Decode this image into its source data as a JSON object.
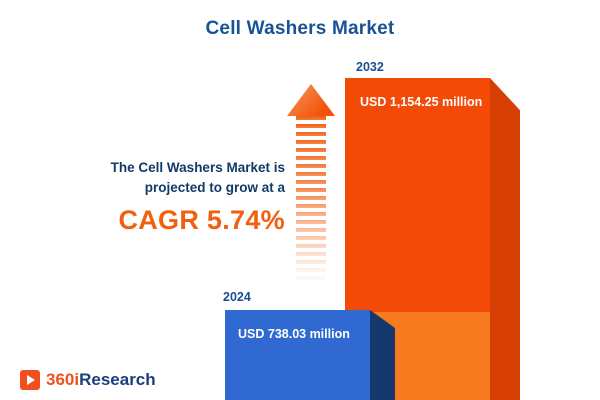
{
  "chart_data": {
    "type": "bar",
    "title": "Cell Washers Market",
    "categories": [
      "2024",
      "2032"
    ],
    "values": [
      738.03,
      1154.25
    ],
    "value_labels": [
      "USD 738.03 million",
      "USD 1,154.25 million"
    ],
    "unit": "USD million",
    "annotation": "The Cell Washers Market is projected to grow at a CAGR 5.74%",
    "legend": "none",
    "grid": false
  },
  "annotation": {
    "line1": "The Cell Washers Market is",
    "line2": "projected to grow at a",
    "cagr": "CAGR 5.74%"
  },
  "logo": {
    "prefix": "360i",
    "suffix": "Research"
  },
  "colors": {
    "navy": "#1a4e8f",
    "annotation_navy": "#123a66",
    "orange": "#f44a08",
    "light_orange": "#f57b1e",
    "dark_orange": "#d63e04",
    "blue": "#2f69d1",
    "dark_blue": "#16386e",
    "cagr_orange": "#f2600f"
  }
}
